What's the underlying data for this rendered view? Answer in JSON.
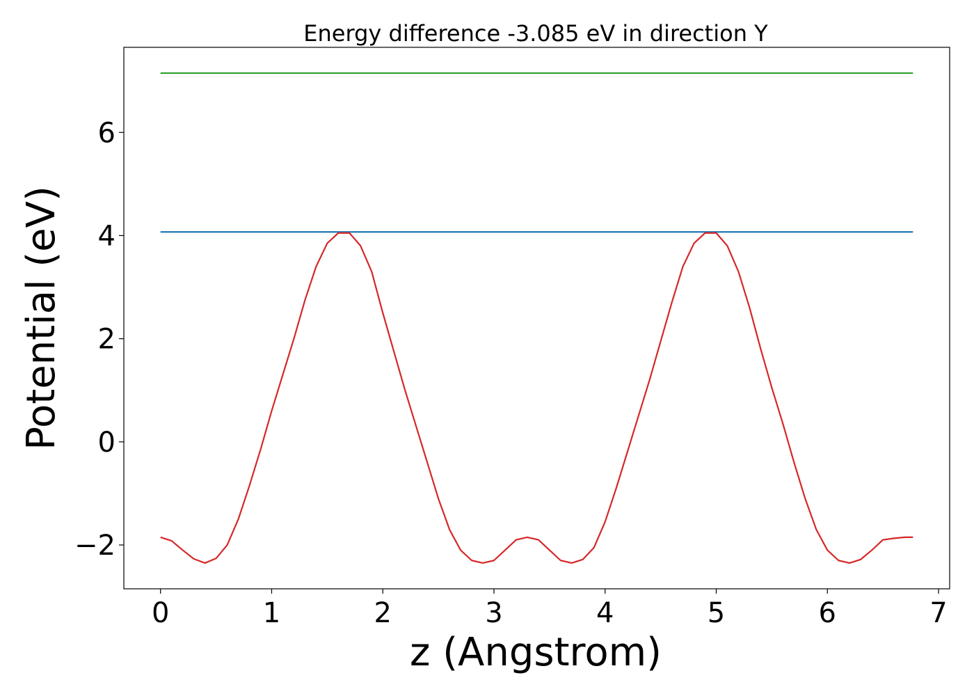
{
  "chart_data": {
    "type": "line",
    "title": "Energy difference -3.085 eV in direction Y",
    "xlabel": "z (Angstrom)",
    "ylabel": "Potential (eV)",
    "xlim": [
      -0.33,
      7.1
    ],
    "ylim": [
      -2.85,
      7.65
    ],
    "xticks": [
      0,
      1,
      2,
      3,
      4,
      5,
      6,
      7
    ],
    "xtick_labels": [
      "0",
      "1",
      "2",
      "3",
      "4",
      "5",
      "6",
      "7"
    ],
    "yticks": [
      -2,
      0,
      2,
      4,
      6
    ],
    "ytick_labels": [
      "−2",
      "0",
      "2",
      "4",
      "6"
    ],
    "grid": false,
    "series": [
      {
        "color": "#2ca02c",
        "x": [
          0,
          6.77
        ],
        "y": [
          7.15,
          7.15
        ]
      },
      {
        "color": "#1f77b4",
        "x": [
          0,
          6.77
        ],
        "y": [
          4.07,
          4.07
        ]
      },
      {
        "color": "#d62728",
        "x": [
          0,
          0.1,
          0.2,
          0.3,
          0.4,
          0.5,
          0.6,
          0.7,
          0.8,
          0.9,
          1.0,
          1.1,
          1.2,
          1.3,
          1.4,
          1.5,
          1.6,
          1.7,
          1.8,
          1.9,
          2.0,
          2.1,
          2.2,
          2.3,
          2.4,
          2.5,
          2.6,
          2.7,
          2.8,
          2.9,
          3.0,
          3.1,
          3.2,
          3.3,
          3.4,
          3.5,
          3.6,
          3.7,
          3.8,
          3.9,
          4.0,
          4.1,
          4.2,
          4.3,
          4.4,
          4.5,
          4.6,
          4.7,
          4.8,
          4.9,
          5.0,
          5.1,
          5.2,
          5.3,
          5.4,
          5.5,
          5.6,
          5.7,
          5.8,
          5.9,
          6.0,
          6.1,
          6.2,
          6.3,
          6.4,
          6.5,
          6.6,
          6.7,
          6.77
        ],
        "y": [
          -1.85,
          -1.92,
          -2.1,
          -2.27,
          -2.35,
          -2.26,
          -2.0,
          -1.5,
          -0.85,
          -0.15,
          0.6,
          1.3,
          2.0,
          2.75,
          3.4,
          3.85,
          4.05,
          4.05,
          3.8,
          3.3,
          2.5,
          1.75,
          1.0,
          0.3,
          -0.4,
          -1.1,
          -1.7,
          -2.1,
          -2.3,
          -2.35,
          -2.3,
          -2.1,
          -1.9,
          -1.85,
          -1.9,
          -2.1,
          -2.3,
          -2.35,
          -2.28,
          -2.05,
          -1.55,
          -0.9,
          -0.2,
          0.5,
          1.2,
          1.95,
          2.7,
          3.4,
          3.85,
          4.05,
          4.05,
          3.8,
          3.3,
          2.6,
          1.8,
          1.05,
          0.35,
          -0.4,
          -1.1,
          -1.7,
          -2.1,
          -2.3,
          -2.35,
          -2.28,
          -2.1,
          -1.9,
          -1.87,
          -1.85,
          -1.85
        ]
      }
    ]
  }
}
